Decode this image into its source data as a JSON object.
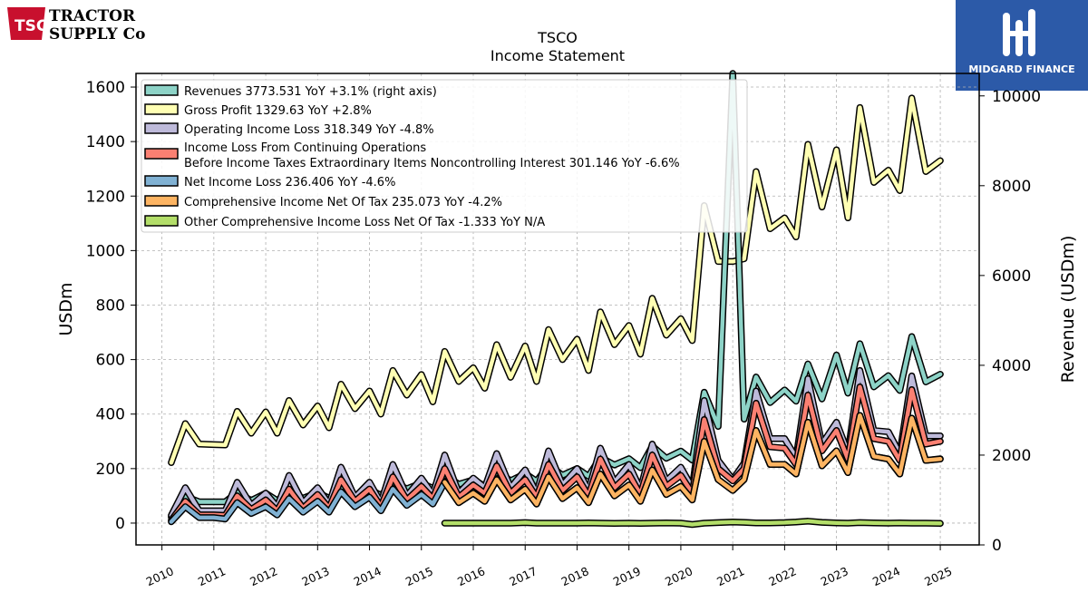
{
  "brand": {
    "tsc_mark": "TSC",
    "tsc_name_line1": "TRACTOR",
    "tsc_name_line2": "SUPPLY Co",
    "midgard_name": "MIDGARD FINANCE"
  },
  "colors": {
    "Revenues": "#8dd3c7",
    "Gross Profit": "#ffffb3",
    "Operating Income Loss": "#bebada",
    "Income Before Taxes": "#fb8072",
    "Net Income Loss": "#80b1d3",
    "Comprehensive Income": "#fdb462",
    "Other Comprehensive": "#b3de69"
  },
  "chart_data": {
    "type": "line",
    "title": "TSCO",
    "subtitle": "Income Statement",
    "ylabel": "USDm",
    "ylabel_right": "Revenue (USDm)",
    "ylim": [
      -80,
      1650
    ],
    "ylim_right": [
      0,
      10500
    ],
    "xlim": [
      2009.5,
      2025.75
    ],
    "yticks": [
      "0",
      "200",
      "400",
      "600",
      "800",
      "1000",
      "1200",
      "1400",
      "1600"
    ],
    "yticks_right": [
      "0",
      "2000",
      "4000",
      "6000",
      "8000",
      "10000"
    ],
    "xticks": [
      "2010",
      "2011",
      "2012",
      "2013",
      "2014",
      "2015",
      "2016",
      "2017",
      "2018",
      "2019",
      "2020",
      "2021",
      "2022",
      "2023",
      "2024",
      "2025"
    ],
    "grid": true,
    "legend_position": "top-left",
    "legend": [
      {
        "text": "Revenues  3773.531 YoY +3.1% (right axis)",
        "color_key": "Revenues"
      },
      {
        "text": "Gross Profit  1329.63 YoY +2.8%",
        "color_key": "Gross Profit"
      },
      {
        "text": "Operating Income Loss  318.349 YoY -4.8%",
        "color_key": "Operating Income Loss"
      },
      {
        "text": "Income Loss From Continuing Operations",
        "text2": "Before Income Taxes Extraordinary Items Noncontrolling Interest  301.146 YoY -6.6%",
        "color_key": "Income Before Taxes"
      },
      {
        "text": "Net Income Loss  236.406 YoY -4.6%",
        "color_key": "Net Income Loss"
      },
      {
        "text": "Comprehensive Income Net Of Tax  235.073 YoY -4.2%",
        "color_key": "Comprehensive Income"
      },
      {
        "text": "Other Comprehensive Income Loss Net Of Tax  -1.333 YoY N/A",
        "color_key": "Other Comprehensive"
      }
    ],
    "series": [
      {
        "key": "Revenues",
        "axis": "right",
        "x": [
          2010.18,
          2010.45,
          2010.72,
          2011.0,
          2011.22,
          2011.45,
          2011.72,
          2012.0,
          2012.22,
          2012.45,
          2012.72,
          2013.0,
          2013.22,
          2013.45,
          2013.72,
          2014.0,
          2014.22,
          2014.45,
          2014.72,
          2015.0,
          2015.22,
          2015.45,
          2015.72,
          2016.0,
          2016.22,
          2016.45,
          2016.72,
          2017.0,
          2017.22,
          2017.45,
          2017.72,
          2018.0,
          2018.22,
          2018.45,
          2018.72,
          2019.0,
          2019.22,
          2019.45,
          2019.72,
          2020.0,
          2020.22,
          2020.45,
          2020.72,
          2021.0,
          2021.22,
          2021.45,
          2021.72,
          2022.0,
          2022.22,
          2022.45,
          2022.72,
          2023.0,
          2023.22,
          2023.45,
          2023.72,
          2024.0,
          2024.22,
          2024.45,
          2024.72,
          2025.0
        ],
        "y": [
          620,
          1080,
          960,
          960,
          960,
          1170,
          990,
          1150,
          990,
          1190,
          1040,
          1170,
          1040,
          1250,
          1090,
          1250,
          1100,
          1390,
          1250,
          1380,
          1260,
          1560,
          1350,
          1450,
          1310,
          1630,
          1430,
          1590,
          1420,
          1780,
          1550,
          1700,
          1530,
          1950,
          1780,
          1920,
          1720,
          2200,
          1930,
          2090,
          1890,
          3400,
          2640,
          10500,
          2800,
          3740,
          3170,
          3450,
          3200,
          4030,
          3250,
          4230,
          3380,
          4480,
          3520,
          3770,
          3440,
          4640,
          3630,
          3800
        ]
      },
      {
        "key": "Gross Profit",
        "axis": "left",
        "x": [
          2010.18,
          2010.45,
          2010.72,
          2011.0,
          2011.22,
          2011.45,
          2011.72,
          2012.0,
          2012.22,
          2012.45,
          2012.72,
          2013.0,
          2013.22,
          2013.45,
          2013.72,
          2014.0,
          2014.22,
          2014.45,
          2014.72,
          2015.0,
          2015.22,
          2015.45,
          2015.72,
          2016.0,
          2016.22,
          2016.45,
          2016.72,
          2017.0,
          2017.22,
          2017.45,
          2017.72,
          2018.0,
          2018.22,
          2018.45,
          2018.72,
          2019.0,
          2019.22,
          2019.45,
          2019.72,
          2020.0,
          2020.22,
          2020.45,
          2020.72,
          2021.0,
          2021.22,
          2021.45,
          2021.72,
          2022.0,
          2022.22,
          2022.45,
          2022.72,
          2023.0,
          2023.22,
          2023.45,
          2023.72,
          2024.0,
          2024.22,
          2024.45,
          2024.72,
          2025.0
        ],
        "y": [
          222,
          365,
          290,
          288,
          287,
          410,
          330,
          408,
          330,
          450,
          360,
          430,
          350,
          510,
          420,
          485,
          400,
          560,
          470,
          545,
          445,
          630,
          520,
          570,
          495,
          655,
          535,
          650,
          520,
          710,
          600,
          675,
          560,
          775,
          655,
          725,
          620,
          825,
          690,
          750,
          670,
          1165,
          960,
          960,
          970,
          1290,
          1080,
          1120,
          1050,
          1390,
          1160,
          1370,
          1120,
          1525,
          1250,
          1295,
          1220,
          1560,
          1290,
          1330
        ]
      },
      {
        "key": "Operating Income Loss",
        "axis": "left",
        "x": [
          2010.18,
          2010.45,
          2010.72,
          2011.0,
          2011.22,
          2011.45,
          2011.72,
          2012.0,
          2012.22,
          2012.45,
          2012.72,
          2013.0,
          2013.22,
          2013.45,
          2013.72,
          2014.0,
          2014.22,
          2014.45,
          2014.72,
          2015.0,
          2015.22,
          2015.45,
          2015.72,
          2016.0,
          2016.22,
          2016.45,
          2016.72,
          2017.0,
          2017.22,
          2017.45,
          2017.72,
          2018.0,
          2018.22,
          2018.45,
          2018.72,
          2019.0,
          2019.22,
          2019.45,
          2019.72,
          2020.0,
          2020.22,
          2020.45,
          2020.72,
          2021.0,
          2021.22,
          2021.45,
          2021.72,
          2022.0,
          2022.22,
          2022.45,
          2022.72,
          2023.0,
          2023.22,
          2023.45,
          2023.72,
          2024.0,
          2024.22,
          2024.45,
          2024.72,
          2025.0
        ],
        "y": [
          28,
          130,
          45,
          45,
          45,
          150,
          65,
          110,
          60,
          175,
          75,
          130,
          70,
          205,
          95,
          150,
          75,
          215,
          100,
          165,
          105,
          250,
          110,
          165,
          130,
          255,
          130,
          195,
          110,
          265,
          140,
          200,
          120,
          275,
          150,
          215,
          125,
          290,
          155,
          205,
          130,
          450,
          230,
          160,
          220,
          485,
          310,
          310,
          240,
          530,
          290,
          370,
          260,
          560,
          340,
          335,
          255,
          540,
          320,
          320
        ]
      },
      {
        "key": "Income Before Taxes",
        "axis": "left",
        "x": [
          2010.18,
          2010.45,
          2010.72,
          2011.0,
          2011.22,
          2011.45,
          2011.72,
          2012.0,
          2012.22,
          2012.45,
          2012.72,
          2013.0,
          2013.22,
          2013.45,
          2013.72,
          2014.0,
          2014.22,
          2014.45,
          2014.72,
          2015.0,
          2015.22,
          2015.45,
          2015.72,
          2016.0,
          2016.22,
          2016.45,
          2016.72,
          2017.0,
          2017.22,
          2017.45,
          2017.72,
          2018.0,
          2018.22,
          2018.45,
          2018.72,
          2019.0,
          2019.22,
          2019.45,
          2019.72,
          2020.0,
          2020.22,
          2020.45,
          2020.72,
          2021.0,
          2021.22,
          2021.45,
          2021.72,
          2022.0,
          2022.22,
          2022.45,
          2022.72,
          2023.0,
          2023.22,
          2023.45,
          2023.72,
          2024.0,
          2024.22,
          2024.45,
          2024.72,
          2025.0
        ],
        "y": [
          10,
          80,
          30,
          30,
          28,
          100,
          50,
          85,
          45,
          125,
          55,
          105,
          55,
          160,
          80,
          125,
          60,
          170,
          85,
          135,
          90,
          200,
          95,
          140,
          110,
          210,
          110,
          160,
          95,
          215,
          120,
          170,
          100,
          235,
          130,
          180,
          105,
          250,
          135,
          175,
          110,
          380,
          200,
          155,
          200,
          440,
          280,
          275,
          215,
          470,
          265,
          340,
          235,
          500,
          310,
          300,
          230,
          490,
          290,
          300
        ]
      },
      {
        "key": "Net Income Loss",
        "axis": "left",
        "x": [
          2010.18,
          2010.45,
          2010.72,
          2011.0,
          2011.22,
          2011.45,
          2011.72,
          2012.0,
          2012.22,
          2012.45,
          2012.72,
          2013.0,
          2013.22,
          2013.45,
          2013.72,
          2014.0,
          2014.22,
          2014.45,
          2014.72,
          2015.0,
          2015.22,
          2015.45,
          2015.72,
          2016.0,
          2016.22,
          2016.45,
          2016.72,
          2017.0,
          2017.22,
          2017.45,
          2017.72,
          2018.0,
          2018.22,
          2018.45,
          2018.72,
          2019.0,
          2019.22,
          2019.45,
          2019.72,
          2020.0,
          2020.22,
          2020.45,
          2020.72,
          2021.0,
          2021.22,
          2021.45,
          2021.72,
          2022.0,
          2022.22,
          2022.45,
          2022.72,
          2023.0,
          2023.22,
          2023.45,
          2023.72,
          2024.0,
          2024.22,
          2024.45,
          2024.72,
          2025.0
        ],
        "y": [
          5,
          60,
          20,
          20,
          15,
          75,
          35,
          60,
          30,
          90,
          40,
          80,
          40,
          115,
          60,
          95,
          45,
          125,
          65,
          105,
          70,
          150,
          75,
          110,
          80,
          160,
          85,
          125,
          70,
          170,
          90,
          130,
          75,
          180,
          100,
          140,
          80,
          195,
          105,
          135,
          85,
          300,
          160,
          120,
          160,
          340,
          215,
          215,
          180,
          370,
          210,
          265,
          185,
          395,
          245,
          235,
          180,
          385,
          230,
          236
        ]
      },
      {
        "key": "Comprehensive Income",
        "axis": "left",
        "x": [
          2015.45,
          2015.72,
          2016.0,
          2016.22,
          2016.45,
          2016.72,
          2017.0,
          2017.22,
          2017.45,
          2017.72,
          2018.0,
          2018.22,
          2018.45,
          2018.72,
          2019.0,
          2019.22,
          2019.45,
          2019.72,
          2020.0,
          2020.22,
          2020.45,
          2020.72,
          2021.0,
          2021.22,
          2021.45,
          2021.72,
          2022.0,
          2022.22,
          2022.45,
          2022.72,
          2023.0,
          2023.22,
          2023.45,
          2023.72,
          2024.0,
          2024.22,
          2024.45,
          2024.72,
          2025.0
        ],
        "y": [
          150,
          75,
          110,
          80,
          160,
          85,
          125,
          70,
          170,
          90,
          130,
          75,
          180,
          100,
          140,
          80,
          195,
          105,
          135,
          85,
          300,
          160,
          120,
          160,
          340,
          215,
          215,
          180,
          370,
          210,
          265,
          185,
          395,
          245,
          235,
          180,
          385,
          230,
          235
        ]
      },
      {
        "key": "Other Comprehensive",
        "axis": "left",
        "x": [
          2015.45,
          2015.72,
          2016.0,
          2016.22,
          2016.45,
          2016.72,
          2017.0,
          2017.22,
          2017.45,
          2017.72,
          2018.0,
          2018.22,
          2018.45,
          2018.72,
          2019.0,
          2019.22,
          2019.45,
          2019.72,
          2020.0,
          2020.22,
          2020.45,
          2020.72,
          2021.0,
          2021.22,
          2021.45,
          2021.72,
          2022.0,
          2022.22,
          2022.45,
          2022.72,
          2023.0,
          2023.22,
          2023.45,
          2023.72,
          2024.0,
          2024.22,
          2024.45,
          2024.72,
          2025.0
        ],
        "y": [
          0,
          0,
          0,
          0,
          0,
          0,
          2,
          0,
          0,
          0,
          0,
          1,
          0,
          -1,
          0,
          -1,
          0,
          1,
          0,
          -5,
          0,
          2,
          4,
          3,
          1,
          1,
          2,
          4,
          7,
          3,
          1,
          0,
          2,
          1,
          0,
          1,
          0,
          0,
          -1
        ]
      }
    ]
  }
}
